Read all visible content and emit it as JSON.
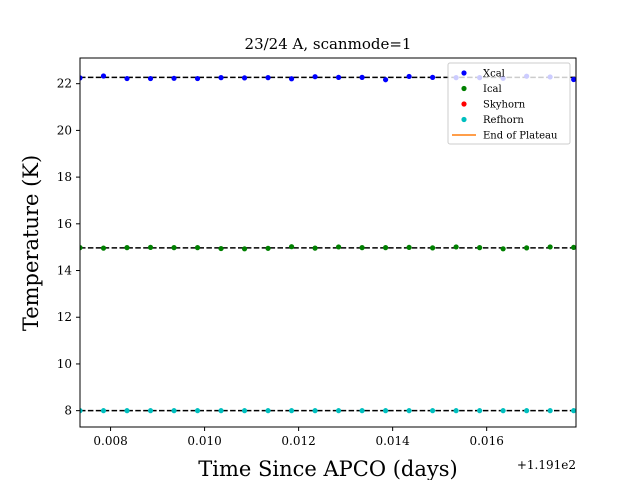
{
  "chart_data": {
    "type": "scatter",
    "title": "23/24 A, scanmode=1",
    "xlabel": "Time Since APCO (days)",
    "ylabel": "Temperature (K)",
    "x_offset_label": "+1.191e2",
    "xlim": [
      0.00735,
      0.0179
    ],
    "ylim": [
      7.3,
      23.1
    ],
    "x_ticks": [
      0.008,
      0.01,
      0.012,
      0.014,
      0.016
    ],
    "x_tick_labels": [
      "0.008",
      "0.010",
      "0.012",
      "0.014",
      "0.016"
    ],
    "y_ticks": [
      8,
      10,
      12,
      14,
      16,
      18,
      20,
      22
    ],
    "y_tick_labels": [
      "8",
      "10",
      "12",
      "14",
      "16",
      "18",
      "20",
      "22"
    ],
    "grid": false,
    "legend_position": "top-right",
    "colors": {
      "Xcal": "#0000ff",
      "Ical": "#008000",
      "Skyhorn": "#ff0000",
      "Refhorn": "#00bfbf",
      "End of Plateau": "#ff7f0e",
      "mean_line": "#000000"
    },
    "x": [
      0.00735,
      0.00785,
      0.00835,
      0.00885,
      0.00935,
      0.00985,
      0.01035,
      0.01085,
      0.01135,
      0.01185,
      0.01235,
      0.01285,
      0.01335,
      0.01385,
      0.01435,
      0.01485,
      0.01535,
      0.01585,
      0.01635,
      0.01685,
      0.01735,
      0.01785
    ],
    "series": [
      {
        "name": "Xcal",
        "values": [
          22.25,
          22.33,
          22.22,
          22.22,
          22.23,
          22.22,
          22.26,
          22.25,
          22.26,
          22.21,
          22.3,
          22.27,
          22.27,
          22.17,
          22.31,
          22.27,
          22.26,
          22.26,
          22.23,
          22.32,
          22.29,
          22.18
        ]
      },
      {
        "name": "Ical",
        "values": [
          14.98,
          14.96,
          14.98,
          14.99,
          14.98,
          14.98,
          14.94,
          14.93,
          14.95,
          15.02,
          14.96,
          15.01,
          14.98,
          14.98,
          14.99,
          14.97,
          15.01,
          14.98,
          14.93,
          14.97,
          15.01,
          14.99
        ]
      },
      {
        "name": "Skyhorn",
        "values": []
      },
      {
        "name": "Refhorn",
        "values": [
          8.0,
          8.0,
          8.0,
          8.0,
          8.0,
          8.0,
          8.0,
          8.0,
          8.0,
          8.0,
          8.0,
          8.0,
          8.0,
          8.0,
          8.0,
          8.0,
          8.0,
          8.0,
          8.0,
          8.0,
          8.0,
          8.0
        ]
      }
    ],
    "mean_lines": [
      22.27,
      14.97,
      8.0
    ],
    "end_of_plateau": []
  }
}
